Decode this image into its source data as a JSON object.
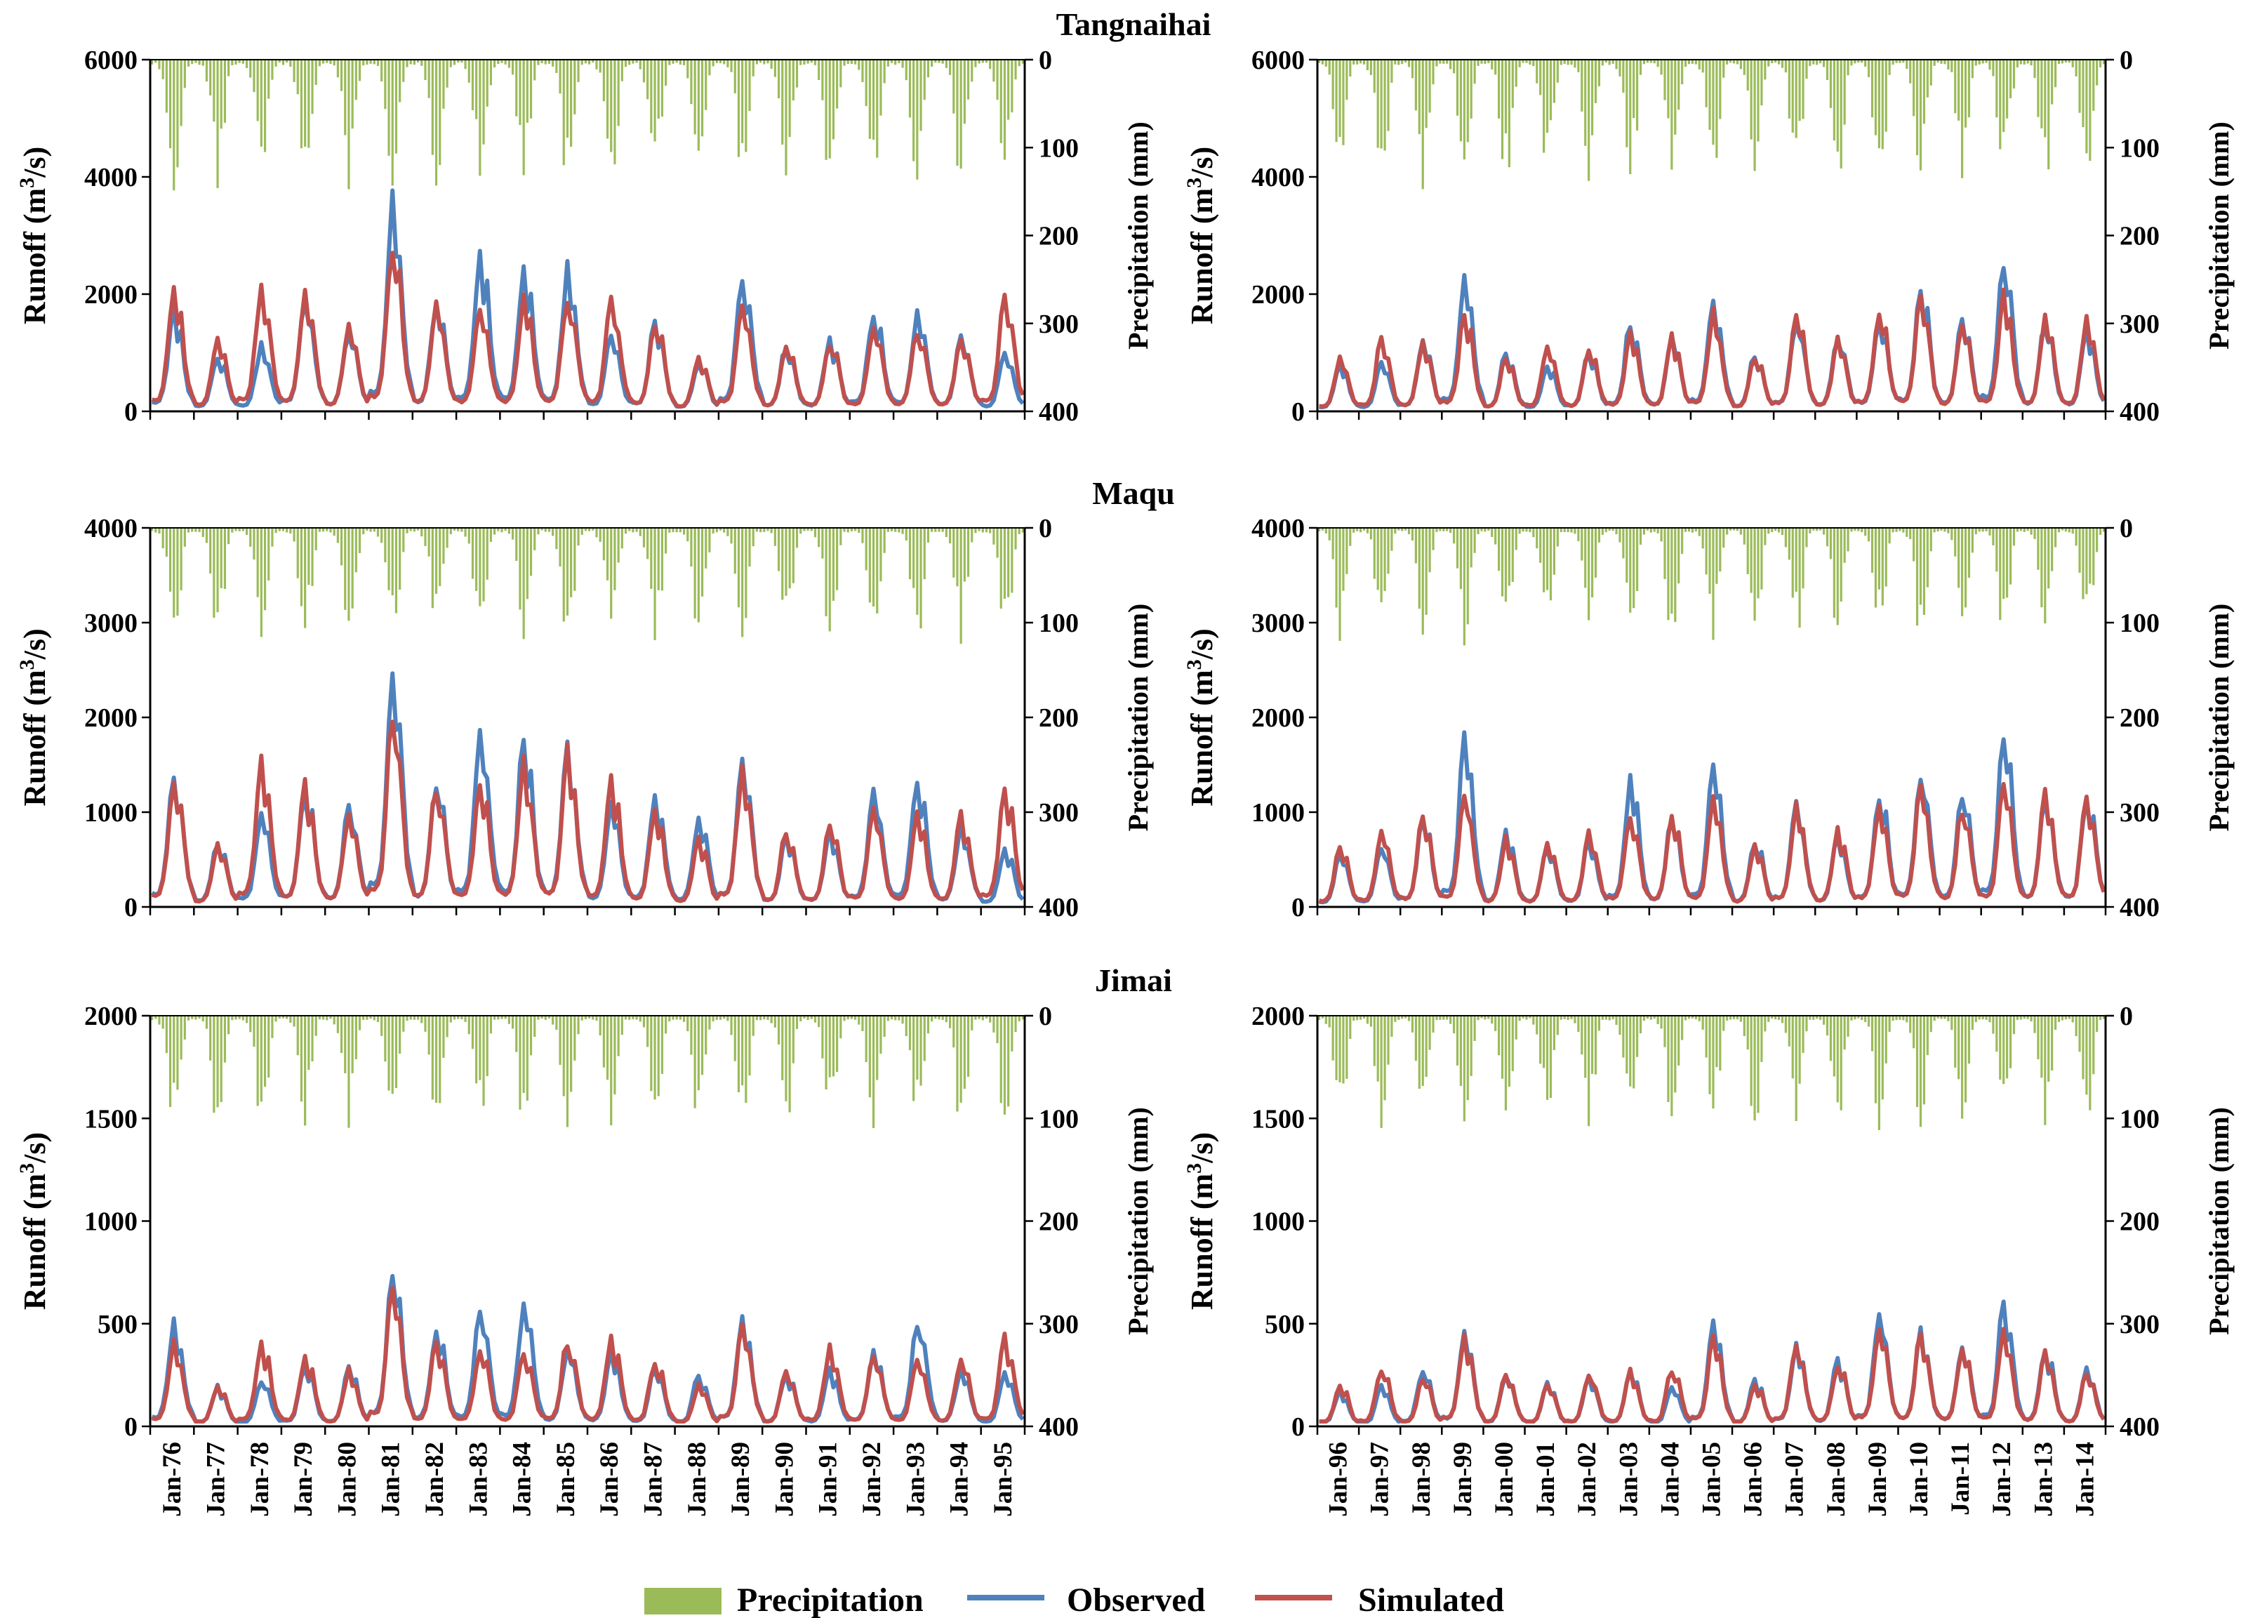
{
  "chart_data": {
    "type": "line",
    "legend": [
      {
        "name": "Precipitation",
        "color": "#9bbb59",
        "kind": "bar"
      },
      {
        "name": "Observed",
        "color": "#4f81bd",
        "kind": "line"
      },
      {
        "name": "Simulated",
        "color": "#c0504d",
        "kind": "line"
      }
    ],
    "colors": {
      "precipitation": "#9bbb59",
      "observed": "#4f81bd",
      "simulated": "#c0504d"
    },
    "axis_labels": {
      "runoff_prefix": "Runoff (m",
      "runoff_sup": "3",
      "runoff_suffix": "/s)",
      "precipitation": "Precipitation (mm)"
    },
    "precip_axis": {
      "range": [
        0,
        400
      ],
      "ticks": [
        "0",
        "100",
        "200",
        "300",
        "400"
      ],
      "inverted": true
    },
    "x_tick_labels": {
      "left": [
        "Jan-76",
        "Jan-77",
        "Jan-78",
        "Jan-79",
        "Jan-80",
        "Jan-81",
        "Jan-82",
        "Jan-83",
        "Jan-84",
        "Jan-85",
        "Jan-86",
        "Jan-87",
        "Jan-88",
        "Jan-89",
        "Jan-90",
        "Jan-91",
        "Jan-92",
        "Jan-93",
        "Jan-94",
        "Jan-95"
      ],
      "right": [
        "Jan-96",
        "Jan-97",
        "Jan-98",
        "Jan-99",
        "Jan-00",
        "Jan-01",
        "Jan-02",
        "Jan-03",
        "Jan-04",
        "Jan-05",
        "Jan-06",
        "Jan-07",
        "Jan-08",
        "Jan-09",
        "Jan-10",
        "Jan-11",
        "Jan-12",
        "Jan-13",
        "Jan-14"
      ]
    },
    "periods": {
      "left": {
        "start_year": 1976,
        "years": 20
      },
      "right": {
        "start_year": 1996,
        "years": 19
      }
    },
    "stations": [
      {
        "name": "Tangnaihai",
        "runoff_max": 6000,
        "runoff_ticks": [
          "6000",
          "4000",
          "2000",
          "0"
        ],
        "precip_peak_scale": 120,
        "annual_peaks": {
          "left": {
            "observed": [
              1700,
              950,
              1100,
              1950,
              1400,
              3550,
              1800,
              2650,
              2450,
              2400,
              1300,
              1500,
              850,
              2400,
              1100,
              1200,
              1750,
              1650,
              1300,
              1000
            ],
            "simulated": [
              2000,
              1200,
              2150,
              2000,
              1400,
              2900,
              1800,
              1850,
              1900,
              2000,
              1850,
              1550,
              900,
              1850,
              1150,
              1200,
              1450,
              1400,
              1300,
              2000
            ]
          },
          "right": {
            "observed": [
              800,
              850,
              1250,
              2300,
              1000,
              800,
              1050,
              1500,
              1300,
              1950,
              1000,
              1600,
              1300,
              1650,
              2150,
              1550,
              2600,
              1500,
              1400
            ],
            "simulated": [
              900,
              1250,
              1200,
              1700,
              900,
              1100,
              1100,
              1300,
              1250,
              1650,
              950,
              1650,
              1200,
              1700,
              2000,
              1500,
              2000,
              1600,
              1550
            ]
          }
        }
      },
      {
        "name": "Maqu",
        "runoff_max": 4000,
        "runoff_ticks": [
          "4000",
          "3000",
          "2000",
          "1000",
          "0"
        ],
        "precip_peak_scale": 100,
        "annual_peaks": {
          "left": {
            "observed": [
              1400,
              700,
              1000,
              1250,
              1050,
              2550,
              1300,
              1850,
              1800,
              1650,
              1050,
              1200,
              950,
              1550,
              750,
              800,
              1200,
              1350,
              850,
              600
            ],
            "simulated": [
              1350,
              650,
              1500,
              1250,
              1000,
              2050,
              1300,
              1350,
              1500,
              1600,
              1300,
              1000,
              700,
              1450,
              800,
              850,
              1050,
              950,
              950,
              1250
            ]
          },
          "right": {
            "observed": [
              550,
              650,
              950,
              1750,
              800,
              650,
              700,
              1300,
              950,
              1450,
              700,
              1050,
              750,
              1200,
              1450,
              1200,
              1800,
              1200,
              1200
            ],
            "simulated": [
              650,
              800,
              950,
              1200,
              700,
              700,
              750,
              1000,
              950,
              1100,
              650,
              1050,
              800,
              1100,
              1250,
              1050,
              1300,
              1200,
              1200
            ]
          }
        }
      },
      {
        "name": "Jimai",
        "runoff_max": 2000,
        "runoff_ticks": [
          "2000",
          "1500",
          "1000",
          "500",
          "0"
        ],
        "precip_peak_scale": 90,
        "annual_peaks": {
          "left": {
            "observed": [
              500,
              190,
              230,
              300,
              280,
              780,
              470,
              560,
              600,
              380,
              350,
              280,
              250,
              510,
              260,
              270,
              350,
              520,
              280,
              250
            ],
            "simulated": [
              400,
              190,
              400,
              340,
              270,
              680,
              400,
              380,
              380,
              420,
              420,
              330,
              200,
              500,
              270,
              370,
              350,
              340,
              320,
              420
            ]
          },
          "right": {
            "observed": [
              170,
              190,
              280,
              440,
              260,
              210,
              240,
              260,
              190,
              500,
              220,
              390,
              320,
              550,
              460,
              400,
              600,
              370,
              270
            ],
            "simulated": [
              200,
              290,
              240,
              440,
              260,
              200,
              260,
              270,
              280,
              430,
              210,
              410,
              310,
              500,
              450,
              390,
              450,
              370,
              270
            ]
          }
        }
      }
    ]
  }
}
